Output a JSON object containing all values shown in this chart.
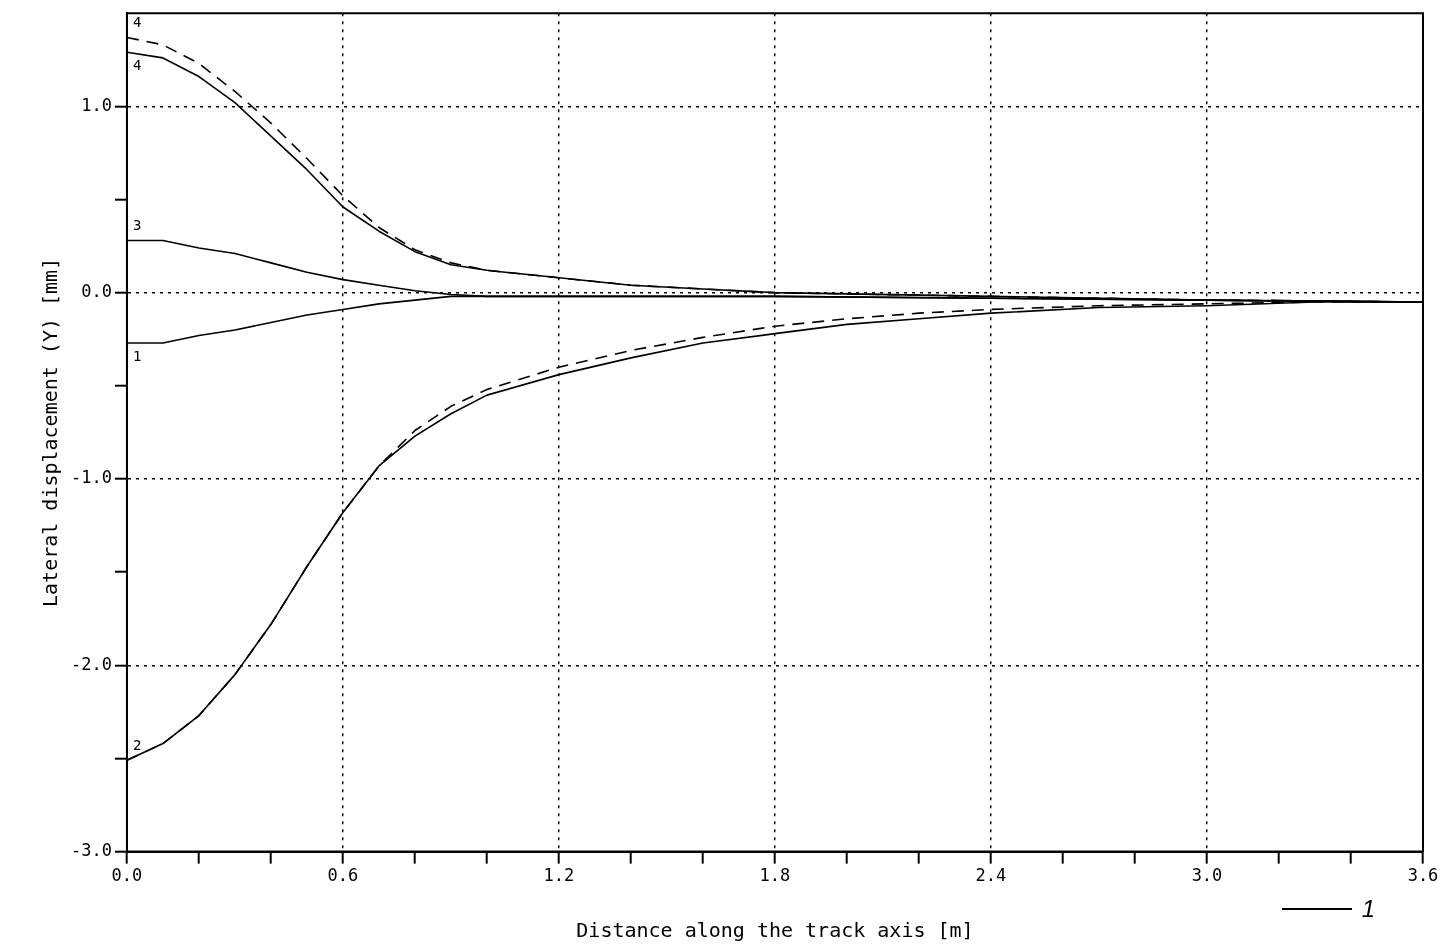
{
  "chart_data": {
    "type": "line",
    "xlabel": "Distance along the track axis [m]",
    "ylabel": "Lateral displacement (Y) [mm]",
    "xlim": [
      0,
      3.6
    ],
    "ylim": [
      -3,
      1.5
    ],
    "xticks": [
      {
        "value": 0,
        "label": "0.0"
      },
      {
        "value": 0.2,
        "label": null
      },
      {
        "value": 0.4,
        "label": null
      },
      {
        "value": 0.6,
        "label": "0.6"
      },
      {
        "value": 0.8,
        "label": null
      },
      {
        "value": 1,
        "label": null
      },
      {
        "value": 1.2,
        "label": "1.2"
      },
      {
        "value": 1.4,
        "label": null
      },
      {
        "value": 1.6,
        "label": null
      },
      {
        "value": 1.8,
        "label": "1.8"
      },
      {
        "value": 2,
        "label": null
      },
      {
        "value": 2.2,
        "label": null
      },
      {
        "value": 2.4,
        "label": "2.4"
      },
      {
        "value": 2.6,
        "label": null
      },
      {
        "value": 2.8,
        "label": null
      },
      {
        "value": 3,
        "label": "3.0"
      },
      {
        "value": 3.2,
        "label": null
      },
      {
        "value": 3.4,
        "label": null
      },
      {
        "value": 3.6,
        "label": "3.6"
      }
    ],
    "yticks": [
      {
        "value": -3,
        "label": "-3.0"
      },
      {
        "value": -2.5,
        "label": null
      },
      {
        "value": -2,
        "label": "-2.0"
      },
      {
        "value": -1.5,
        "label": null
      },
      {
        "value": -1,
        "label": "-1.0"
      },
      {
        "value": -0.5,
        "label": null
      },
      {
        "value": 0,
        "label": "0.0"
      },
      {
        "value": 0.5,
        "label": null
      },
      {
        "value": 1,
        "label": "1.0"
      }
    ],
    "grid": true,
    "marker": "none",
    "series": [
      {
        "name": "1",
        "color": "#000000",
        "line_style": "solid",
        "x": [
          0,
          0.1,
          0.2,
          0.3,
          0.4,
          0.5,
          0.6,
          0.7,
          0.8,
          0.9,
          1.0,
          1.2,
          1.8,
          2.4,
          3.0,
          3.6
        ],
        "values": [
          -0.27,
          -0.27,
          -0.23,
          -0.2,
          -0.16,
          -0.12,
          -0.09,
          -0.06,
          -0.04,
          -0.02,
          -0.02,
          -0.02,
          -0.02,
          -0.03,
          -0.04,
          -0.05
        ]
      },
      {
        "name": "2",
        "color": "#000000",
        "line_style": "solid",
        "x": [
          0,
          0.1,
          0.2,
          0.3,
          0.4,
          0.5,
          0.6,
          0.7,
          0.8,
          0.9,
          1.0,
          1.2,
          1.4,
          1.6,
          1.8,
          2.0,
          2.2,
          2.4,
          2.7,
          3.0,
          3.3,
          3.6
        ],
        "values": [
          -2.51,
          -2.42,
          -2.27,
          -2.05,
          -1.78,
          -1.47,
          -1.18,
          -0.93,
          -0.77,
          -0.65,
          -0.55,
          -0.44,
          -0.35,
          -0.27,
          -0.22,
          -0.17,
          -0.14,
          -0.11,
          -0.08,
          -0.07,
          -0.05,
          -0.05
        ]
      },
      {
        "color": "#000000",
        "line_style": "dashed",
        "x": [
          0,
          0.1,
          0.2,
          0.3,
          0.4,
          0.5,
          0.6,
          0.7,
          0.8,
          0.9,
          1.0,
          1.2,
          1.4,
          1.6,
          1.8,
          2.0,
          2.2,
          2.4,
          2.7,
          3.0,
          3.3,
          3.6
        ],
        "values": [
          -2.51,
          -2.42,
          -2.27,
          -2.05,
          -1.78,
          -1.47,
          -1.18,
          -0.93,
          -0.74,
          -0.61,
          -0.52,
          -0.4,
          -0.31,
          -0.24,
          -0.18,
          -0.14,
          -0.11,
          -0.09,
          -0.07,
          -0.06,
          -0.05,
          -0.05
        ]
      },
      {
        "name": "3",
        "color": "#000000",
        "line_style": "solid",
        "x": [
          0,
          0.1,
          0.2,
          0.3,
          0.4,
          0.5,
          0.6,
          0.7,
          0.8,
          0.9,
          1.0,
          1.2,
          1.8,
          2.4,
          3.0,
          3.6
        ],
        "values": [
          0.28,
          0.28,
          0.24,
          0.21,
          0.16,
          0.11,
          0.07,
          0.04,
          0.01,
          -0.01,
          -0.02,
          -0.02,
          -0.02,
          -0.03,
          -0.04,
          -0.05
        ]
      },
      {
        "name": "4",
        "color": "#000000",
        "line_style": "solid",
        "x": [
          0,
          0.1,
          0.2,
          0.3,
          0.4,
          0.5,
          0.6,
          0.7,
          0.8,
          0.9,
          1.0,
          1.2,
          1.4,
          1.6,
          1.8,
          2.4,
          3.0,
          3.6
        ],
        "values": [
          1.29,
          1.26,
          1.16,
          1.02,
          0.84,
          0.66,
          0.46,
          0.33,
          0.22,
          0.15,
          0.12,
          0.08,
          0.04,
          0.02,
          0.0,
          -0.02,
          -0.04,
          -0.05
        ]
      },
      {
        "name": "4",
        "color": "#000000",
        "line_style": "dashed",
        "x": [
          0,
          0.1,
          0.2,
          0.3,
          0.4,
          0.5,
          0.6,
          0.7,
          0.8,
          0.9,
          1.0,
          1.2,
          1.4,
          1.6,
          1.8,
          2.4,
          3.0,
          3.6
        ],
        "values": [
          1.37,
          1.33,
          1.23,
          1.08,
          0.91,
          0.72,
          0.52,
          0.35,
          0.23,
          0.16,
          0.12,
          0.08,
          0.04,
          0.02,
          0.0,
          -0.02,
          -0.04,
          -0.05
        ]
      }
    ],
    "annotations": [
      "1"
    ]
  }
}
